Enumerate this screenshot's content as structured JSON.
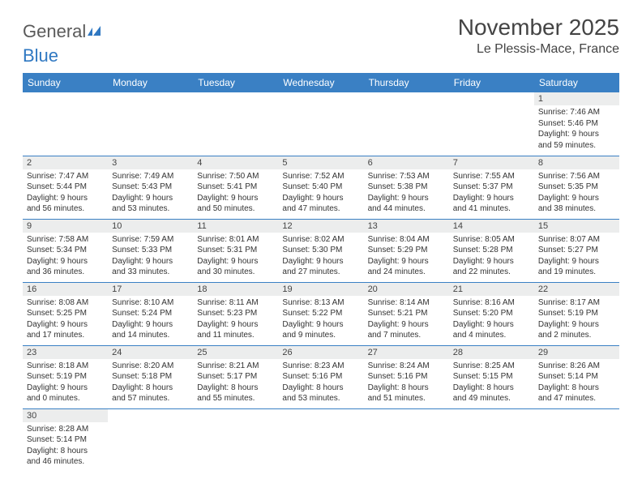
{
  "logo": {
    "text_gray": "General",
    "text_blue": "Blue"
  },
  "header": {
    "month_title": "November 2025",
    "location": "Le Plessis-Mace, France"
  },
  "colors": {
    "header_bg": "#3a80c4",
    "header_text": "#ffffff",
    "daynum_bg": "#eceded",
    "border": "#3a80c4",
    "logo_gray": "#5a5a5a",
    "logo_blue": "#2f78c2",
    "body_text": "#333333"
  },
  "weekdays": [
    "Sunday",
    "Monday",
    "Tuesday",
    "Wednesday",
    "Thursday",
    "Friday",
    "Saturday"
  ],
  "weeks": [
    [
      null,
      null,
      null,
      null,
      null,
      null,
      {
        "n": "1",
        "sr": "Sunrise: 7:46 AM",
        "ss": "Sunset: 5:46 PM",
        "d1": "Daylight: 9 hours",
        "d2": "and 59 minutes."
      }
    ],
    [
      {
        "n": "2",
        "sr": "Sunrise: 7:47 AM",
        "ss": "Sunset: 5:44 PM",
        "d1": "Daylight: 9 hours",
        "d2": "and 56 minutes."
      },
      {
        "n": "3",
        "sr": "Sunrise: 7:49 AM",
        "ss": "Sunset: 5:43 PM",
        "d1": "Daylight: 9 hours",
        "d2": "and 53 minutes."
      },
      {
        "n": "4",
        "sr": "Sunrise: 7:50 AM",
        "ss": "Sunset: 5:41 PM",
        "d1": "Daylight: 9 hours",
        "d2": "and 50 minutes."
      },
      {
        "n": "5",
        "sr": "Sunrise: 7:52 AM",
        "ss": "Sunset: 5:40 PM",
        "d1": "Daylight: 9 hours",
        "d2": "and 47 minutes."
      },
      {
        "n": "6",
        "sr": "Sunrise: 7:53 AM",
        "ss": "Sunset: 5:38 PM",
        "d1": "Daylight: 9 hours",
        "d2": "and 44 minutes."
      },
      {
        "n": "7",
        "sr": "Sunrise: 7:55 AM",
        "ss": "Sunset: 5:37 PM",
        "d1": "Daylight: 9 hours",
        "d2": "and 41 minutes."
      },
      {
        "n": "8",
        "sr": "Sunrise: 7:56 AM",
        "ss": "Sunset: 5:35 PM",
        "d1": "Daylight: 9 hours",
        "d2": "and 38 minutes."
      }
    ],
    [
      {
        "n": "9",
        "sr": "Sunrise: 7:58 AM",
        "ss": "Sunset: 5:34 PM",
        "d1": "Daylight: 9 hours",
        "d2": "and 36 minutes."
      },
      {
        "n": "10",
        "sr": "Sunrise: 7:59 AM",
        "ss": "Sunset: 5:33 PM",
        "d1": "Daylight: 9 hours",
        "d2": "and 33 minutes."
      },
      {
        "n": "11",
        "sr": "Sunrise: 8:01 AM",
        "ss": "Sunset: 5:31 PM",
        "d1": "Daylight: 9 hours",
        "d2": "and 30 minutes."
      },
      {
        "n": "12",
        "sr": "Sunrise: 8:02 AM",
        "ss": "Sunset: 5:30 PM",
        "d1": "Daylight: 9 hours",
        "d2": "and 27 minutes."
      },
      {
        "n": "13",
        "sr": "Sunrise: 8:04 AM",
        "ss": "Sunset: 5:29 PM",
        "d1": "Daylight: 9 hours",
        "d2": "and 24 minutes."
      },
      {
        "n": "14",
        "sr": "Sunrise: 8:05 AM",
        "ss": "Sunset: 5:28 PM",
        "d1": "Daylight: 9 hours",
        "d2": "and 22 minutes."
      },
      {
        "n": "15",
        "sr": "Sunrise: 8:07 AM",
        "ss": "Sunset: 5:27 PM",
        "d1": "Daylight: 9 hours",
        "d2": "and 19 minutes."
      }
    ],
    [
      {
        "n": "16",
        "sr": "Sunrise: 8:08 AM",
        "ss": "Sunset: 5:25 PM",
        "d1": "Daylight: 9 hours",
        "d2": "and 17 minutes."
      },
      {
        "n": "17",
        "sr": "Sunrise: 8:10 AM",
        "ss": "Sunset: 5:24 PM",
        "d1": "Daylight: 9 hours",
        "d2": "and 14 minutes."
      },
      {
        "n": "18",
        "sr": "Sunrise: 8:11 AM",
        "ss": "Sunset: 5:23 PM",
        "d1": "Daylight: 9 hours",
        "d2": "and 11 minutes."
      },
      {
        "n": "19",
        "sr": "Sunrise: 8:13 AM",
        "ss": "Sunset: 5:22 PM",
        "d1": "Daylight: 9 hours",
        "d2": "and 9 minutes."
      },
      {
        "n": "20",
        "sr": "Sunrise: 8:14 AM",
        "ss": "Sunset: 5:21 PM",
        "d1": "Daylight: 9 hours",
        "d2": "and 7 minutes."
      },
      {
        "n": "21",
        "sr": "Sunrise: 8:16 AM",
        "ss": "Sunset: 5:20 PM",
        "d1": "Daylight: 9 hours",
        "d2": "and 4 minutes."
      },
      {
        "n": "22",
        "sr": "Sunrise: 8:17 AM",
        "ss": "Sunset: 5:19 PM",
        "d1": "Daylight: 9 hours",
        "d2": "and 2 minutes."
      }
    ],
    [
      {
        "n": "23",
        "sr": "Sunrise: 8:18 AM",
        "ss": "Sunset: 5:19 PM",
        "d1": "Daylight: 9 hours",
        "d2": "and 0 minutes."
      },
      {
        "n": "24",
        "sr": "Sunrise: 8:20 AM",
        "ss": "Sunset: 5:18 PM",
        "d1": "Daylight: 8 hours",
        "d2": "and 57 minutes."
      },
      {
        "n": "25",
        "sr": "Sunrise: 8:21 AM",
        "ss": "Sunset: 5:17 PM",
        "d1": "Daylight: 8 hours",
        "d2": "and 55 minutes."
      },
      {
        "n": "26",
        "sr": "Sunrise: 8:23 AM",
        "ss": "Sunset: 5:16 PM",
        "d1": "Daylight: 8 hours",
        "d2": "and 53 minutes."
      },
      {
        "n": "27",
        "sr": "Sunrise: 8:24 AM",
        "ss": "Sunset: 5:16 PM",
        "d1": "Daylight: 8 hours",
        "d2": "and 51 minutes."
      },
      {
        "n": "28",
        "sr": "Sunrise: 8:25 AM",
        "ss": "Sunset: 5:15 PM",
        "d1": "Daylight: 8 hours",
        "d2": "and 49 minutes."
      },
      {
        "n": "29",
        "sr": "Sunrise: 8:26 AM",
        "ss": "Sunset: 5:14 PM",
        "d1": "Daylight: 8 hours",
        "d2": "and 47 minutes."
      }
    ],
    [
      {
        "n": "30",
        "sr": "Sunrise: 8:28 AM",
        "ss": "Sunset: 5:14 PM",
        "d1": "Daylight: 8 hours",
        "d2": "and 46 minutes."
      },
      null,
      null,
      null,
      null,
      null,
      null
    ]
  ]
}
